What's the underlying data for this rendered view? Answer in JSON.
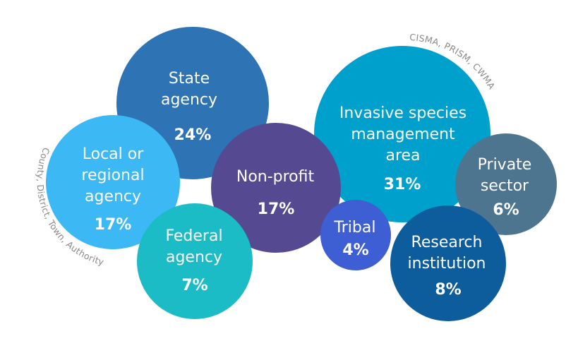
{
  "chart_data": {
    "type": "bubble",
    "unit": "%",
    "items": [
      {
        "key": "state",
        "label_lines": [
          "State",
          "agency"
        ],
        "value": 24,
        "value_label": "24%",
        "color": "#2e74b5"
      },
      {
        "key": "invasive",
        "label_lines": [
          "Invasive species",
          "management",
          "area"
        ],
        "value": 31,
        "value_label": "31%",
        "color": "#00a0cc"
      },
      {
        "key": "local",
        "label_lines": [
          "Local or",
          "regional",
          "agency"
        ],
        "value": 17,
        "value_label": "17%",
        "color": "#3cb8f5"
      },
      {
        "key": "nonprofit",
        "label_lines": [
          "Non-profit"
        ],
        "value": 17,
        "value_label": "17%",
        "color": "#554a92"
      },
      {
        "key": "federal",
        "label_lines": [
          "Federal",
          "agency"
        ],
        "value": 7,
        "value_label": "7%",
        "color": "#1bbcc6"
      },
      {
        "key": "tribal",
        "label_lines": [
          "Tribal"
        ],
        "value": 4,
        "value_label": "4%",
        "color": "#3d5fd3"
      },
      {
        "key": "private",
        "label_lines": [
          "Private",
          "sector"
        ],
        "value": 6,
        "value_label": "6%",
        "color": "#4d7590"
      },
      {
        "key": "research",
        "label_lines": [
          "Research",
          "institution"
        ],
        "value": 8,
        "value_label": "8%",
        "color": "#0d5c9c"
      }
    ],
    "annotations": {
      "local": "County, District, Town, Authority",
      "invasive": "CISMA, PRISM, CWMA"
    }
  }
}
